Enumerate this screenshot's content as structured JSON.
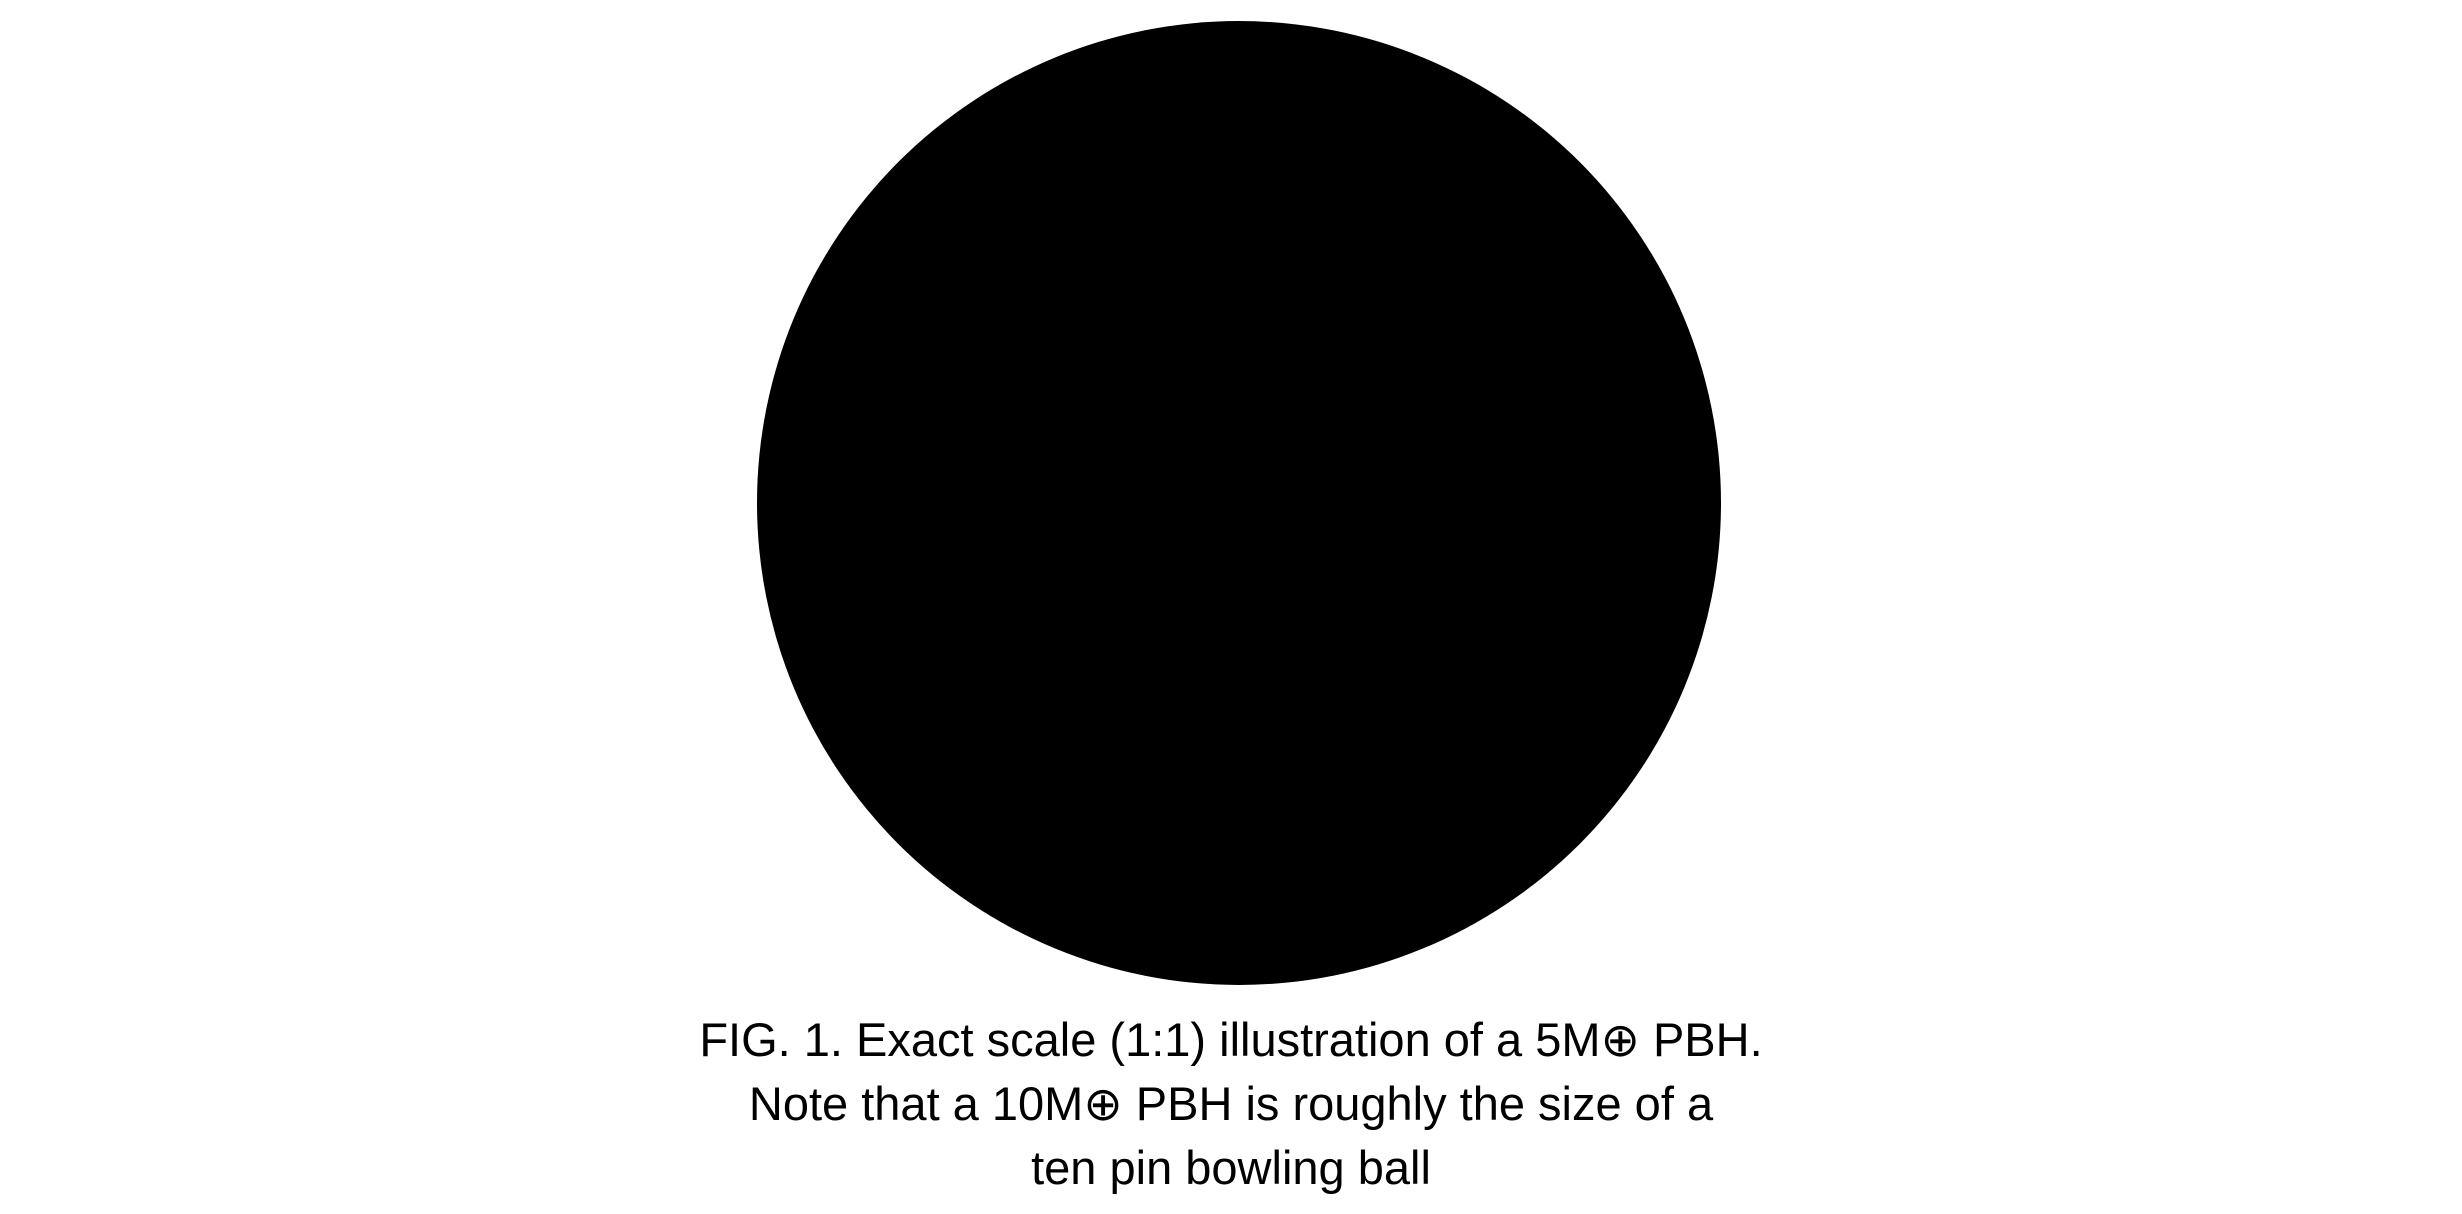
{
  "figure": {
    "disk_color": "#000000",
    "background_color": "#ffffff",
    "caption": {
      "line1": "FIG. 1. Exact scale (1:1) illustration of a 5M⊕ PBH.",
      "line2": "Note that a 10M⊕ PBH is roughly the size of a",
      "line3": "ten pin bowling ball"
    }
  }
}
